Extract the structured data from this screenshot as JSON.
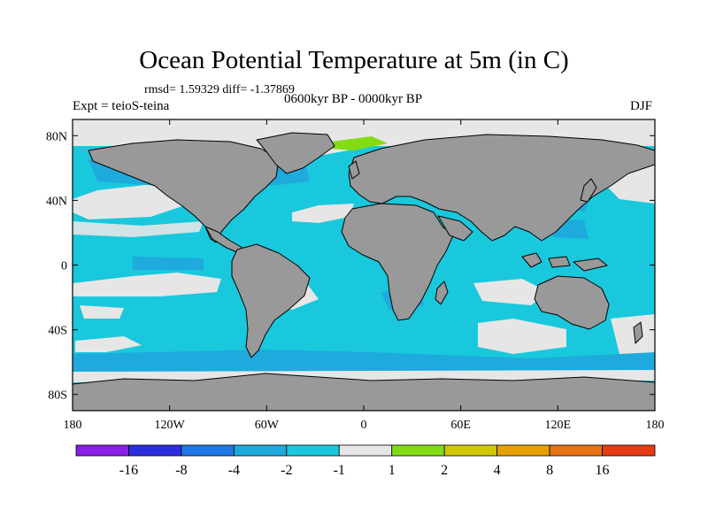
{
  "title": "Ocean Potential Temperature at 5m (in C)",
  "stats_line": "rmsd= 1.59329 diff= -1.37869",
  "period": "0600kyr BP - 0000kyr BP",
  "experiment": "Expt = teioS-teina",
  "season": "DJF",
  "map": {
    "projection": "cylindrical equidistant",
    "lon_range": [
      -180,
      180
    ],
    "lat_range": [
      -90,
      90
    ],
    "lon_ticks": [
      {
        "value": -180,
        "label": "180"
      },
      {
        "value": -120,
        "label": "120W"
      },
      {
        "value": -60,
        "label": "60W"
      },
      {
        "value": 0,
        "label": "0"
      },
      {
        "value": 60,
        "label": "60E"
      },
      {
        "value": 120,
        "label": "120E"
      },
      {
        "value": 180,
        "label": "180"
      }
    ],
    "lat_ticks": [
      {
        "value": 80,
        "label": "80N"
      },
      {
        "value": 40,
        "label": "40N"
      },
      {
        "value": 0,
        "label": "0"
      },
      {
        "value": -40,
        "label": "40S"
      },
      {
        "value": -80,
        "label": "80S"
      }
    ],
    "land_color": "#999999",
    "ocean_base_color": "#19c8dc"
  },
  "colorbar": {
    "colors": [
      "#8a1ee6",
      "#2d2de0",
      "#1e78e6",
      "#1eaadc",
      "#19c8dc",
      "#e6e6e6",
      "#82dc14",
      "#d2c800",
      "#e6a000",
      "#e67314",
      "#e63c14"
    ],
    "labels": [
      "-16",
      "-8",
      "-4",
      "-2",
      "-1",
      "1",
      "2",
      "4",
      "8",
      "16"
    ]
  }
}
